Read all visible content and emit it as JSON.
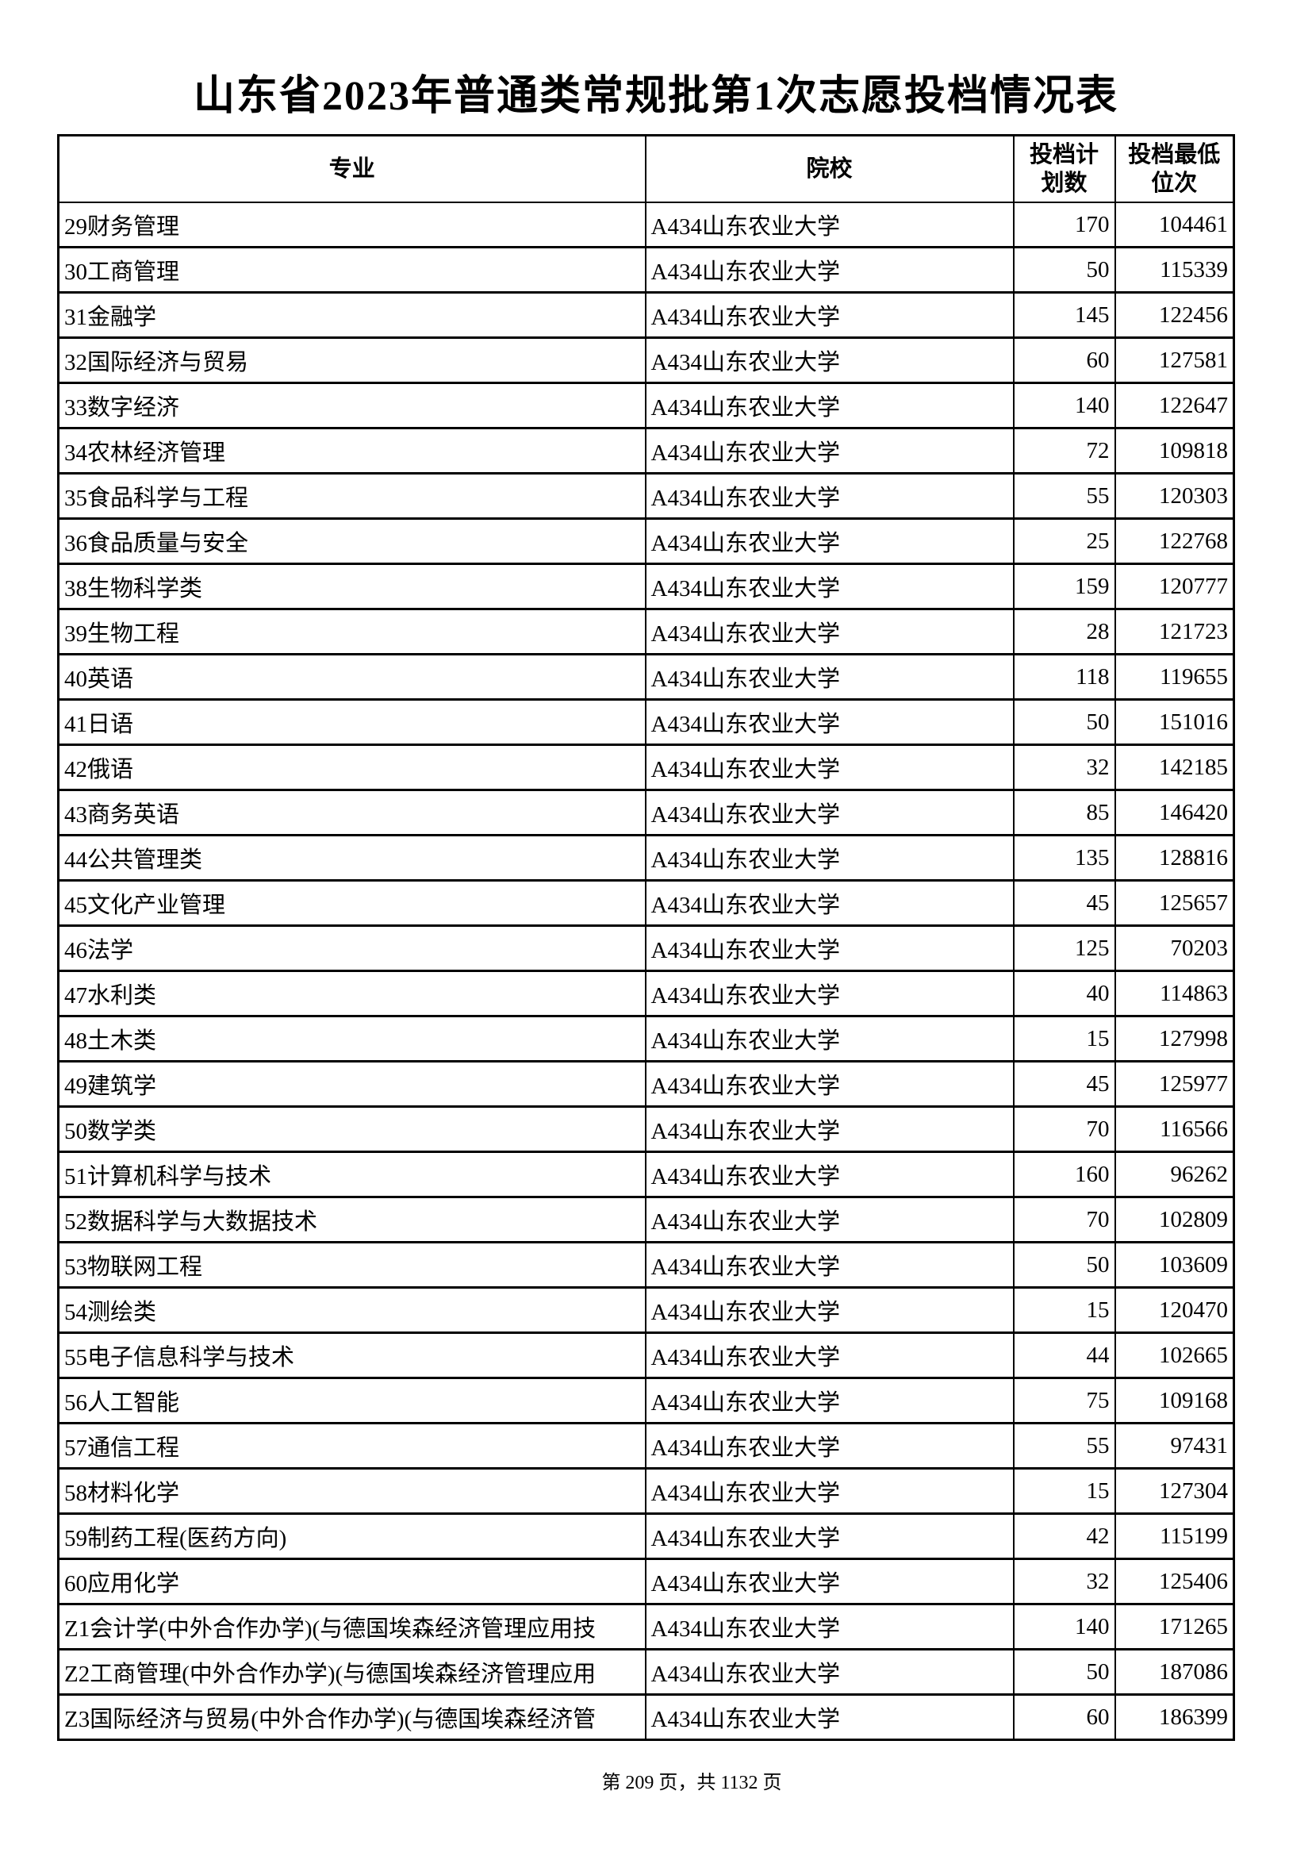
{
  "title": "山东省2023年普通类常规批第1次志愿投档情况表",
  "headers": [
    "专业",
    "院校",
    "投档计划数",
    "投档最低位次"
  ],
  "rows": [
    [
      "29财务管理",
      "A434山东农业大学",
      "170",
      "104461"
    ],
    [
      "30工商管理",
      "A434山东农业大学",
      "50",
      "115339"
    ],
    [
      "31金融学",
      "A434山东农业大学",
      "145",
      "122456"
    ],
    [
      "32国际经济与贸易",
      "A434山东农业大学",
      "60",
      "127581"
    ],
    [
      "33数字经济",
      "A434山东农业大学",
      "140",
      "122647"
    ],
    [
      "34农林经济管理",
      "A434山东农业大学",
      "72",
      "109818"
    ],
    [
      "35食品科学与工程",
      "A434山东农业大学",
      "55",
      "120303"
    ],
    [
      "36食品质量与安全",
      "A434山东农业大学",
      "25",
      "122768"
    ],
    [
      "38生物科学类",
      "A434山东农业大学",
      "159",
      "120777"
    ],
    [
      "39生物工程",
      "A434山东农业大学",
      "28",
      "121723"
    ],
    [
      "40英语",
      "A434山东农业大学",
      "118",
      "119655"
    ],
    [
      "41日语",
      "A434山东农业大学",
      "50",
      "151016"
    ],
    [
      "42俄语",
      "A434山东农业大学",
      "32",
      "142185"
    ],
    [
      "43商务英语",
      "A434山东农业大学",
      "85",
      "146420"
    ],
    [
      "44公共管理类",
      "A434山东农业大学",
      "135",
      "128816"
    ],
    [
      "45文化产业管理",
      "A434山东农业大学",
      "45",
      "125657"
    ],
    [
      "46法学",
      "A434山东农业大学",
      "125",
      "70203"
    ],
    [
      "47水利类",
      "A434山东农业大学",
      "40",
      "114863"
    ],
    [
      "48土木类",
      "A434山东农业大学",
      "15",
      "127998"
    ],
    [
      "49建筑学",
      "A434山东农业大学",
      "45",
      "125977"
    ],
    [
      "50数学类",
      "A434山东农业大学",
      "70",
      "116566"
    ],
    [
      "51计算机科学与技术",
      "A434山东农业大学",
      "160",
      "96262"
    ],
    [
      "52数据科学与大数据技术",
      "A434山东农业大学",
      "70",
      "102809"
    ],
    [
      "53物联网工程",
      "A434山东农业大学",
      "50",
      "103609"
    ],
    [
      "54测绘类",
      "A434山东农业大学",
      "15",
      "120470"
    ],
    [
      "55电子信息科学与技术",
      "A434山东农业大学",
      "44",
      "102665"
    ],
    [
      "56人工智能",
      "A434山东农业大学",
      "75",
      "109168"
    ],
    [
      "57通信工程",
      "A434山东农业大学",
      "55",
      "97431"
    ],
    [
      "58材料化学",
      "A434山东农业大学",
      "15",
      "127304"
    ],
    [
      "59制药工程(医药方向)",
      "A434山东农业大学",
      "42",
      "115199"
    ],
    [
      "60应用化学",
      "A434山东农业大学",
      "32",
      "125406"
    ],
    [
      "Z1会计学(中外合作办学)(与德国埃森经济管理应用技",
      "A434山东农业大学",
      "140",
      "171265"
    ],
    [
      "Z2工商管理(中外合作办学)(与德国埃森经济管理应用",
      "A434山东农业大学",
      "50",
      "187086"
    ],
    [
      "Z3国际经济与贸易(中外合作办学)(与德国埃森经济管",
      "A434山东农业大学",
      "60",
      "186399"
    ]
  ],
  "footer": "第 209 页，共 1132 页"
}
